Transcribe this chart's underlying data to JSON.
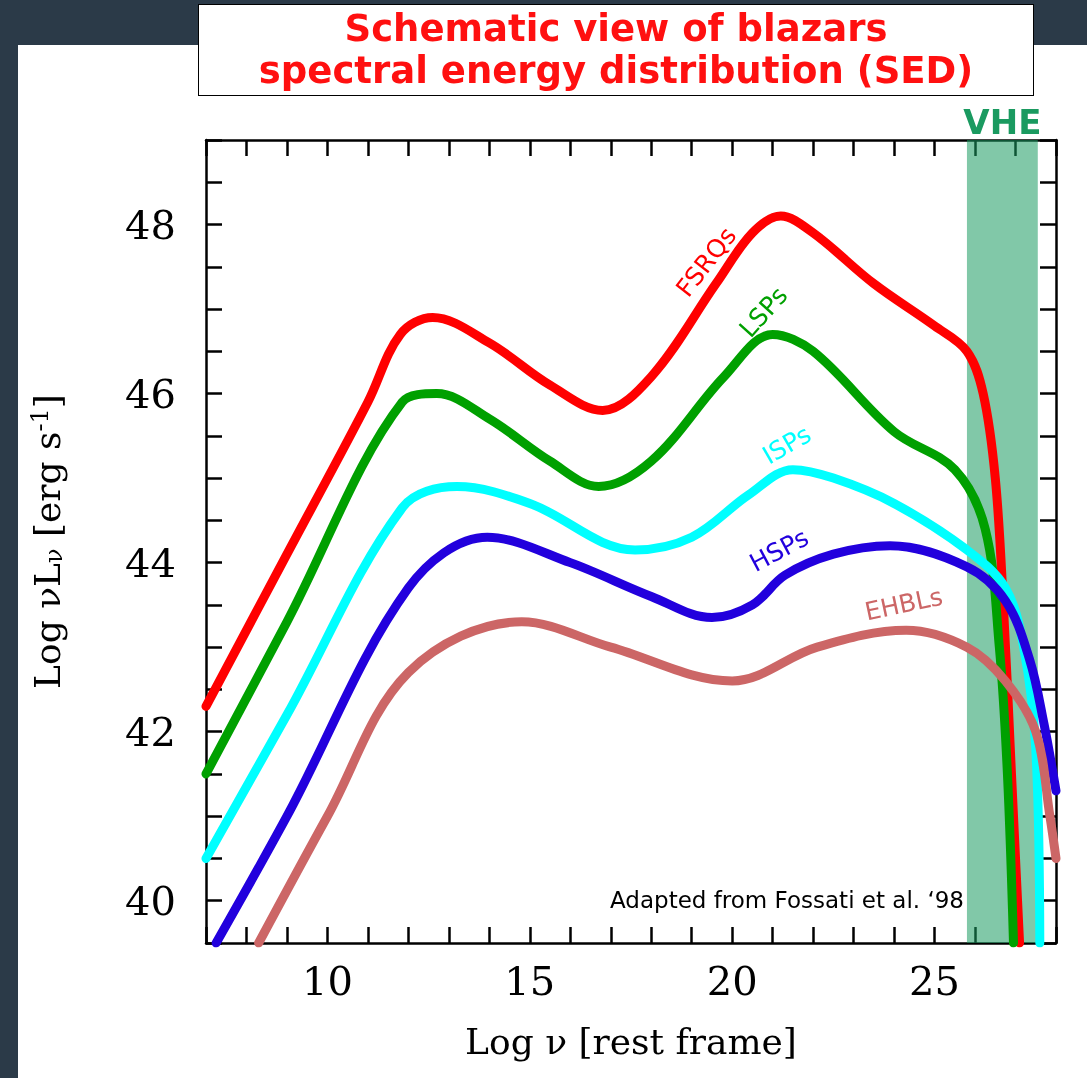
{
  "chart_data": {
    "type": "line",
    "title": "Schematic view of blazars\nspectral energy distribution (SED)",
    "xlabel": "Log ν [rest frame]",
    "ylabel": "Log νL$_{ν}$ [erg s$^{-1}$]",
    "xlim": [
      7,
      28
    ],
    "ylim": [
      39.5,
      49
    ],
    "xticks": [
      10,
      15,
      20,
      25
    ],
    "yticks": [
      40,
      42,
      44,
      46,
      48
    ],
    "grid": false,
    "legend": false,
    "marker": "none",
    "line_style": "solid",
    "series": [
      {
        "name": "FSRQs",
        "color": "#ff0000",
        "x": [
          7,
          9,
          11,
          11.8,
          12.6,
          14,
          15.5,
          16.8,
          18,
          19.6,
          20.5,
          21.2,
          22,
          23.5,
          25,
          25.8,
          26.2,
          26.5,
          26.7,
          26.9,
          27.1
        ],
        "values": [
          42.3,
          44.1,
          45.9,
          46.7,
          46.9,
          46.6,
          46.1,
          45.8,
          46.2,
          47.3,
          47.9,
          48.1,
          47.9,
          47.3,
          46.8,
          46.5,
          46.0,
          45.0,
          43.5,
          41.5,
          39.5
        ]
      },
      {
        "name": "LSPs",
        "color": "#00a000",
        "x": [
          7,
          9,
          11.85,
          12.7,
          14,
          15.5,
          16.7,
          18,
          19.8,
          21,
          22,
          24,
          25.5,
          26.25,
          26.6,
          26.8,
          26.95
        ],
        "values": [
          41.5,
          43.3,
          45.9,
          46.0,
          45.7,
          45.2,
          44.9,
          45.2,
          46.2,
          46.7,
          46.5,
          45.55,
          45.1,
          44.4,
          43.0,
          41.5,
          39.5
        ]
      },
      {
        "name": "ISPs",
        "color": "#00ffff",
        "x": [
          7,
          9,
          11.85,
          13.2,
          15,
          17.6,
          19,
          20.4,
          21.5,
          22.5,
          24,
          25.8,
          26.75,
          27.2,
          27.5,
          27.6
        ],
        "values": [
          40.5,
          42.2,
          44.65,
          44.9,
          44.7,
          44.15,
          44.3,
          44.8,
          45.1,
          45.0,
          44.7,
          44.15,
          43.7,
          43.0,
          41.8,
          39.5
        ]
      },
      {
        "name": "HSPs",
        "color": "#2200dd",
        "x": [
          7.25,
          9,
          12,
          13.95,
          16,
          18,
          19.5,
          20.5,
          21.3,
          22.5,
          23.9,
          25.8,
          26.75,
          27.35,
          27.7,
          28
        ],
        "values": [
          39.5,
          41.0,
          43.7,
          44.3,
          44.0,
          43.6,
          43.35,
          43.5,
          43.85,
          44.1,
          44.2,
          43.95,
          43.55,
          42.85,
          42.1,
          41.3
        ]
      },
      {
        "name": "EHBLs",
        "color": "#cc6666",
        "x": [
          8.3,
          10,
          12,
          14.8,
          17,
          20,
          22.1,
          24.3,
          25.8,
          26.75,
          27.5,
          27.85,
          28
        ],
        "values": [
          39.5,
          41.0,
          42.7,
          43.3,
          43.0,
          42.6,
          43.0,
          43.2,
          43.0,
          42.6,
          42.0,
          41.0,
          40.5
        ]
      }
    ],
    "bands": [
      {
        "axis": "x",
        "from": 25.8,
        "to": 27.55,
        "label": "VHE",
        "color": "#1a9a60"
      }
    ],
    "annotations": [
      "Adapted from Fossati et al. ‘98"
    ]
  }
}
